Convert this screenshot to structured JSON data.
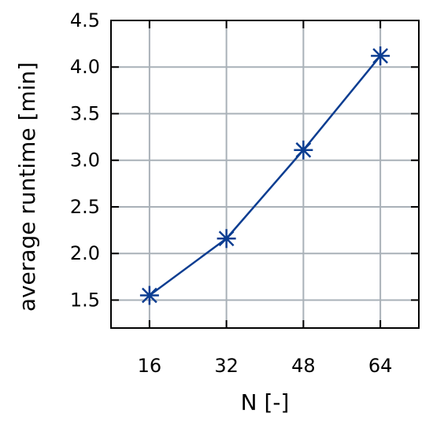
{
  "chart_data": {
    "type": "line",
    "title": "",
    "xlabel": "N [-]",
    "ylabel": "average runtime [min]",
    "x": [
      16,
      32,
      48,
      64
    ],
    "x_tick_labels": [
      "16",
      "32",
      "48",
      "64"
    ],
    "xlim": [
      8,
      72
    ],
    "ylim": [
      1.2,
      4.5
    ],
    "y_ticks": [
      1.5,
      2.0,
      2.5,
      3.0,
      3.5,
      4.0,
      4.5
    ],
    "y_tick_labels": [
      "1.5",
      "2.0",
      "2.5",
      "3.0",
      "3.5",
      "4.0",
      "4.5"
    ],
    "grid": true,
    "legend": "none",
    "series": [
      {
        "values": [
          1.55,
          2.16,
          3.11,
          4.12
        ],
        "color": "#0b3d91",
        "marker": "asterisk"
      }
    ],
    "grid_color": "#a9b1b8"
  }
}
